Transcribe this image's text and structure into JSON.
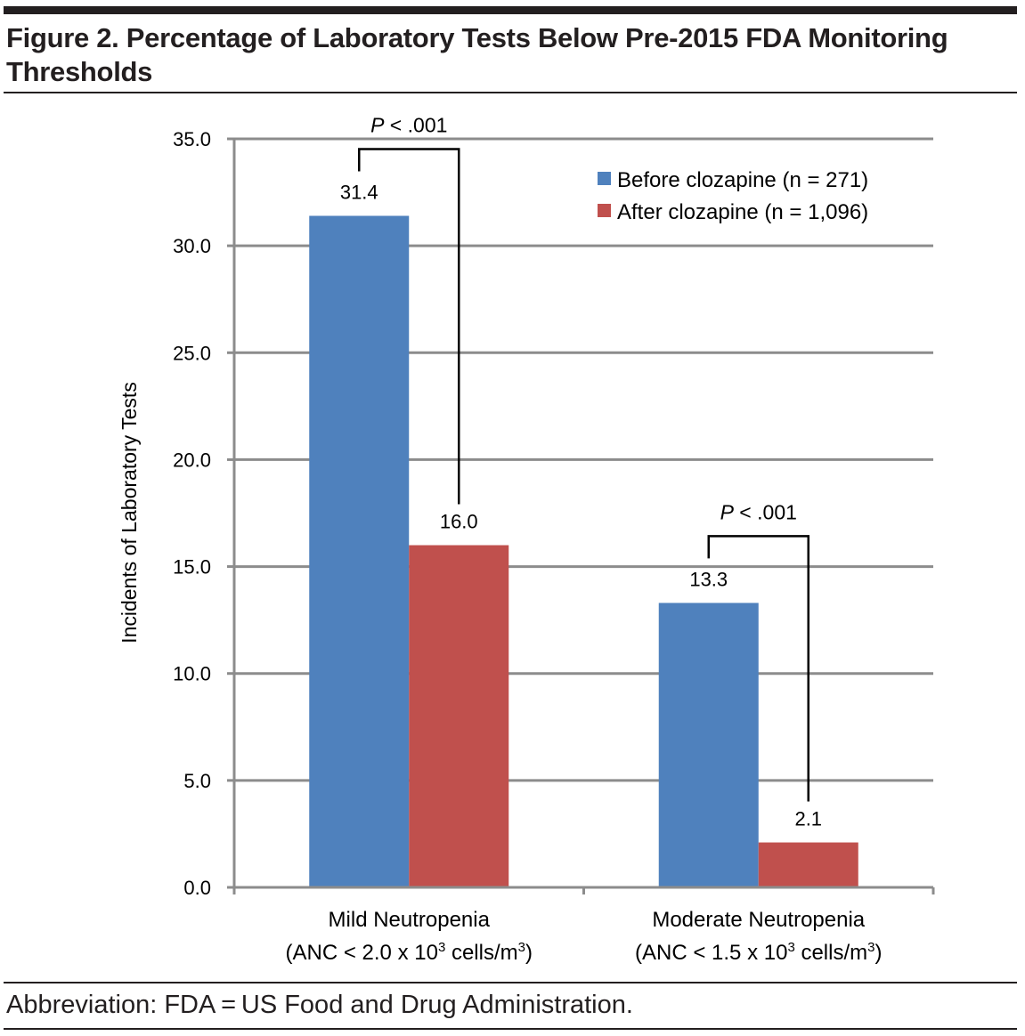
{
  "figure": {
    "title": "Figure 2. Percentage of Laboratory Tests Below Pre-2015 FDA Monitoring Thresholds",
    "footer": "Abbreviation: FDA = US Food and Drug Administration."
  },
  "chart_data": {
    "type": "bar",
    "title": "Figure 2. Percentage of Laboratory Tests Below Pre-2015 FDA Monitoring Thresholds",
    "xlabel": "",
    "ylabel": "Incidents of Laboratory Tests",
    "ylim": [
      0,
      35
    ],
    "yticks": [
      0,
      5,
      10,
      15,
      20,
      25,
      30,
      35
    ],
    "ytick_labels": [
      "0.0",
      "5.0",
      "10.0",
      "15.0",
      "20.0",
      "25.0",
      "30.0",
      "35.0"
    ],
    "grid": true,
    "legend_position": "top-right",
    "categories": [
      {
        "line1": "Mild Neutropenia",
        "line2_pre": "(ANC < 2.0 x 10",
        "sup1": "3",
        "line2_mid": " cells/m",
        "sup2": "3",
        "line2_post": ")"
      },
      {
        "line1": "Moderate Neutropenia",
        "line2_pre": "(ANC < 1.5 x 10",
        "sup1": "3",
        "line2_mid": " cells/m",
        "sup2": "3",
        "line2_post": ")"
      }
    ],
    "series": [
      {
        "name": "Before clozapine (n = 271)",
        "color": "#4f81bd",
        "values": [
          31.4,
          13.3
        ],
        "labels": [
          "31.4",
          "13.3"
        ]
      },
      {
        "name": "After clozapine (n = 1,096)",
        "color": "#c0504d",
        "values": [
          16.0,
          2.1
        ],
        "labels": [
          "16.0",
          "2.1"
        ]
      }
    ],
    "annotations": [
      {
        "type": "significance-bracket",
        "category_index": 0,
        "p_italic": "P",
        "p_rest": " < .001"
      },
      {
        "type": "significance-bracket",
        "category_index": 1,
        "p_italic": "P",
        "p_rest": " < .001"
      }
    ]
  }
}
